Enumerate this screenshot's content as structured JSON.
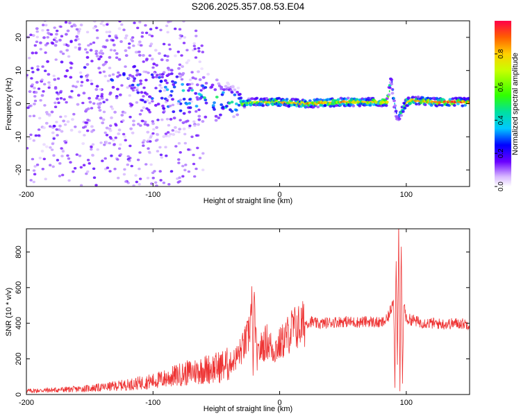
{
  "title": "S206.2025.357.08.53.E04",
  "colors": {
    "snr_line": "#ee3333",
    "frame": "#000000",
    "colormap": [
      "#ffffff",
      "#e0c8ff",
      "#a060ff",
      "#6a00ff",
      "#0000ff",
      "#00c8ff",
      "#00e080",
      "#30ff00",
      "#c8ff00",
      "#ffd000",
      "#ff7000",
      "#ff0040"
    ]
  },
  "chart_data": [
    {
      "type": "heatmap",
      "name": "spectrogram",
      "title": "S206.2025.357.08.53.E04",
      "xlabel": "Height of straight line (km)",
      "ylabel": "Frequency (Hz)",
      "xlim": [
        -200,
        150
      ],
      "ylim": [
        -25,
        25
      ],
      "xticks": [
        -200,
        -100,
        0,
        100
      ],
      "xtick_labels": [
        "-200",
        "-100",
        "0",
        "100"
      ],
      "yticks": [
        -20,
        -10,
        0,
        10,
        20
      ],
      "ytick_labels": [
        "-20",
        "-10",
        "0",
        "10",
        "20"
      ],
      "description_series": {
        "ridge_x": [
          -200,
          -150,
          -120,
          -100,
          -80,
          -60,
          -40,
          -30,
          -20,
          0,
          20,
          50,
          85,
          88,
          90,
          93,
          100,
          105,
          120,
          150
        ],
        "ridge_freq": [
          12,
          9,
          6,
          4,
          2.5,
          1.5,
          0.5,
          0,
          0.5,
          0.5,
          0,
          0.5,
          0.5,
          8,
          1,
          -5,
          0.5,
          1,
          0.5,
          0.5
        ],
        "amplitude": [
          0.25,
          0.3,
          0.35,
          0.45,
          0.5,
          0.55,
          0.6,
          0.7,
          0.75,
          0.8,
          0.85,
          0.85,
          0.8,
          0.3,
          0.5,
          0.3,
          0.8,
          0.85,
          0.9,
          0.9
        ]
      }
    },
    {
      "type": "colorbar",
      "name": "colorbar",
      "label": "Normalized spectral amplitude",
      "range": [
        0.0,
        1.0
      ],
      "ticks": [
        0.0,
        0.2,
        0.4,
        0.6,
        0.8
      ],
      "tick_labels": [
        "0.0",
        "0.2",
        "0.4",
        "0.6",
        "0.8"
      ]
    },
    {
      "type": "line",
      "name": "snr",
      "xlabel": "Height of straight line (km)",
      "ylabel": "SNR (10 * v/v)",
      "xlim": [
        -200,
        150
      ],
      "ylim": [
        0,
        930
      ],
      "xticks": [
        -200,
        -100,
        0,
        100
      ],
      "xtick_labels": [
        "-200",
        "-100",
        "0",
        "100"
      ],
      "yticks": [
        0,
        200,
        400,
        600,
        800
      ],
      "ytick_labels": [
        "0",
        "200",
        "400",
        "600",
        "800"
      ],
      "series": [
        {
          "name": "SNR",
          "x": [
            -200,
            -180,
            -160,
            -140,
            -120,
            -100,
            -90,
            -80,
            -70,
            -60,
            -50,
            -40,
            -35,
            -30,
            -25,
            -22,
            -21,
            -20,
            -18,
            -15,
            -10,
            -5,
            0,
            5,
            10,
            15,
            20,
            25,
            30,
            40,
            50,
            60,
            70,
            80,
            85,
            88,
            90,
            91,
            92,
            93,
            94,
            95,
            96,
            97,
            98,
            100,
            105,
            110,
            120,
            130,
            140,
            150
          ],
          "y": [
            20,
            25,
            30,
            40,
            55,
            75,
            90,
            110,
            125,
            140,
            150,
            170,
            200,
            250,
            320,
            480,
            150,
            500,
            200,
            260,
            300,
            250,
            280,
            320,
            370,
            380,
            400,
            410,
            395,
            405,
            410,
            405,
            410,
            400,
            420,
            480,
            560,
            40,
            800,
            180,
            930,
            20,
            860,
            60,
            520,
            420,
            420,
            405,
            400,
            395,
            400,
            395
          ]
        }
      ]
    }
  ]
}
